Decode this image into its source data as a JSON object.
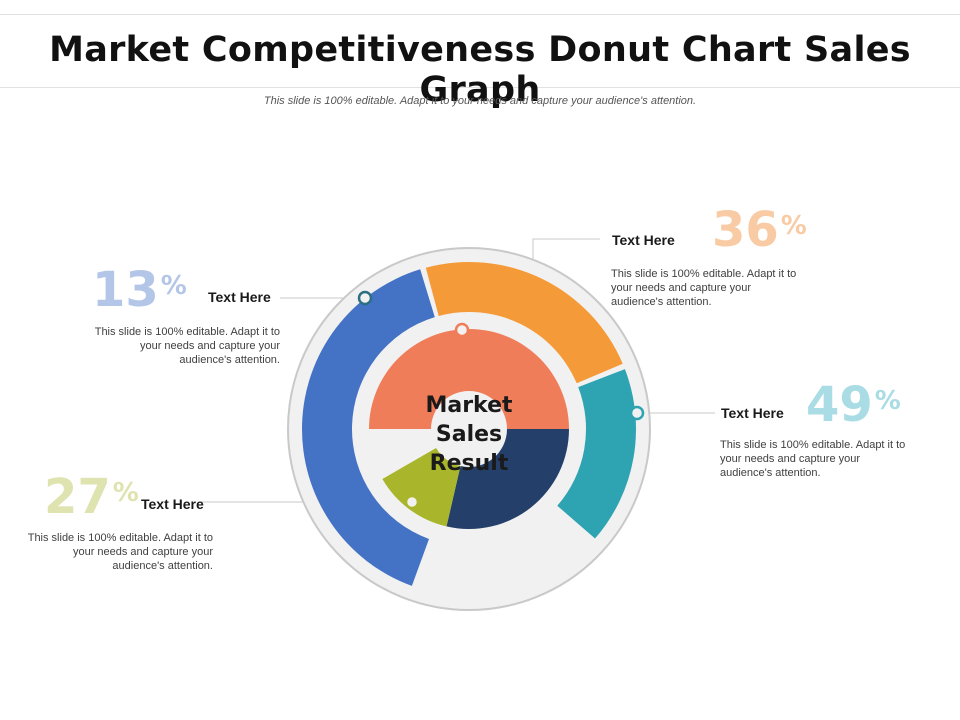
{
  "title": "Market Competitiveness Donut Chart Sales Graph",
  "subtitle": "This slide is 100% editable. Adapt it to your needs and capture your audience's attention.",
  "center_label": [
    "Market",
    "Sales",
    "Result"
  ],
  "callouts": [
    {
      "id": "c1",
      "value": "13",
      "unit": "%",
      "heading": "Text Here",
      "text": "This slide is 100% editable. Adapt it to your needs and capture your audience's attention.",
      "color": "#b4c6e7"
    },
    {
      "id": "c2",
      "value": "36",
      "unit": "%",
      "heading": "Text Here",
      "text": "This slide is 100% editable. Adapt it to your needs and capture your audience's attention.",
      "color": "#f8cba4"
    },
    {
      "id": "c3",
      "value": "49",
      "unit": "%",
      "heading": "Text Here",
      "text": "This slide is 100% editable. Adapt it to your needs and capture your audience's attention.",
      "color": "#a9dce4"
    },
    {
      "id": "c4",
      "value": "27",
      "unit": "%",
      "heading": "Text Here",
      "text": "This slide is 100% editable. Adapt it to your needs and capture your audience's attention.",
      "color": "#dfe3b0"
    }
  ],
  "chart_data": {
    "type": "donut",
    "title": "Market Competitiveness Donut Chart Sales Graph",
    "center_label": "Market Sales Result",
    "rings": [
      {
        "name": "outer",
        "segments": [
          {
            "color": "#4472c4",
            "start_deg": 200,
            "end_deg": 343
          },
          {
            "color": "#f59a38",
            "start_deg": 345,
            "end_deg": 67
          },
          {
            "color": "#2ea3b2",
            "start_deg": 69,
            "end_deg": 131
          }
        ]
      },
      {
        "name": "inner",
        "segments": [
          {
            "color": "#f07d59",
            "start_deg": 270,
            "end_deg": 90
          },
          {
            "color": "#24406a",
            "start_deg": 90,
            "end_deg": 193
          },
          {
            "color": "#a9b52a",
            "start_deg": 193,
            "end_deg": 240
          }
        ]
      }
    ],
    "background": "#f1f1f1"
  }
}
